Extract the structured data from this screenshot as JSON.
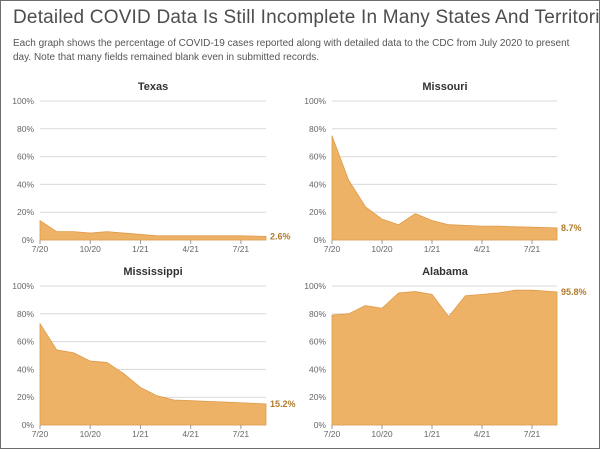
{
  "title": "Detailed COVID Data Is Still Incomplete In Many States And Territories",
  "subtitle": "Each graph shows the percentage of COVID-19 cases reported along with detailed data to the CDC from July 2020 to present day. Note that many fields remained blank even in submitted records.",
  "colors": {
    "area_fill": "#eeb266",
    "area_stroke": "#e09a48",
    "gridline": "#d9d9d9",
    "end_label": "#b07a2a"
  },
  "chart_data": [
    {
      "type": "area",
      "title": "Texas",
      "ylim": [
        0,
        100
      ],
      "y_ticks": [
        "0%",
        "20%",
        "40%",
        "60%",
        "80%",
        "100%"
      ],
      "x_ticks": [
        {
          "label": "7/20",
          "x": 0
        },
        {
          "label": "10/20",
          "x": 3
        },
        {
          "label": "1/21",
          "x": 6
        },
        {
          "label": "4/21",
          "x": 9
        },
        {
          "label": "7/21",
          "x": 12
        }
      ],
      "x_max": 13.5,
      "x": [
        0,
        1,
        2,
        3,
        4,
        5,
        6,
        7,
        8,
        9,
        10,
        11,
        12,
        13.5
      ],
      "values": [
        14,
        6,
        6,
        5,
        6,
        5,
        4,
        3,
        3,
        3,
        3,
        3,
        3,
        2.6
      ],
      "end_label": "2.6%",
      "grid": true
    },
    {
      "type": "area",
      "title": "Missouri",
      "ylim": [
        0,
        100
      ],
      "y_ticks": [
        "0%",
        "20%",
        "40%",
        "60%",
        "80%",
        "100%"
      ],
      "x_ticks": [
        {
          "label": "7/20",
          "x": 0
        },
        {
          "label": "10/20",
          "x": 3
        },
        {
          "label": "1/21",
          "x": 6
        },
        {
          "label": "4/21",
          "x": 9
        },
        {
          "label": "7/21",
          "x": 12
        }
      ],
      "x_max": 13.5,
      "x": [
        0,
        1,
        2,
        3,
        4,
        5,
        6,
        7,
        8,
        9,
        10,
        11,
        12,
        13.5
      ],
      "values": [
        75,
        43,
        24,
        15,
        11,
        19,
        14,
        11,
        10.5,
        10,
        10,
        9.5,
        9.2,
        8.7
      ],
      "end_label": "8.7%",
      "grid": true
    },
    {
      "type": "area",
      "title": "Mississippi",
      "ylim": [
        0,
        100
      ],
      "y_ticks": [
        "0%",
        "20%",
        "40%",
        "60%",
        "80%",
        "100%"
      ],
      "x_ticks": [
        {
          "label": "7/20",
          "x": 0
        },
        {
          "label": "10/20",
          "x": 3
        },
        {
          "label": "1/21",
          "x": 6
        },
        {
          "label": "4/21",
          "x": 9
        },
        {
          "label": "7/21",
          "x": 12
        }
      ],
      "x_max": 13.5,
      "x": [
        0,
        1,
        2,
        3,
        4,
        5,
        6,
        7,
        8,
        9,
        10,
        11,
        12,
        13.5
      ],
      "values": [
        73,
        54,
        52,
        46,
        45,
        37,
        27,
        21,
        18,
        17.5,
        17,
        16.5,
        16,
        15.2
      ],
      "end_label": "15.2%",
      "grid": true
    },
    {
      "type": "area",
      "title": "Alabama",
      "ylim": [
        0,
        100
      ],
      "y_ticks": [
        "0%",
        "20%",
        "40%",
        "60%",
        "80%",
        "100%"
      ],
      "x_ticks": [
        {
          "label": "7/20",
          "x": 0
        },
        {
          "label": "10/20",
          "x": 3
        },
        {
          "label": "1/21",
          "x": 6
        },
        {
          "label": "4/21",
          "x": 9
        },
        {
          "label": "7/21",
          "x": 12
        }
      ],
      "x_max": 13.5,
      "x": [
        0,
        1,
        2,
        3,
        4,
        5,
        6,
        7,
        8,
        9,
        10,
        11,
        12,
        13.5
      ],
      "values": [
        79,
        80,
        86,
        84,
        95,
        96,
        94,
        78,
        93,
        94,
        95,
        97,
        97,
        95.8
      ],
      "end_label": "95.8%",
      "grid": true
    }
  ]
}
